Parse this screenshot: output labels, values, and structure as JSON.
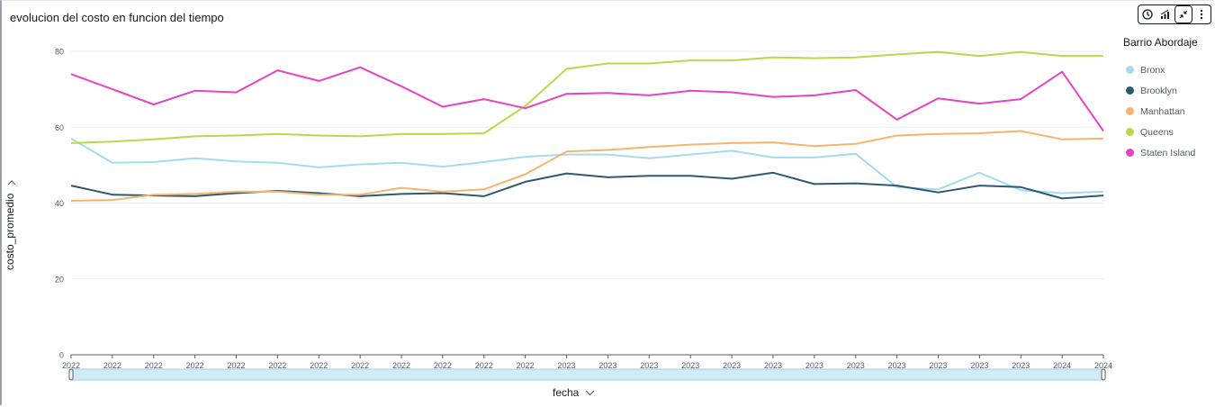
{
  "chart_data": {
    "type": "line",
    "title": "evolucion del costo en funcion del tiempo",
    "xlabel": "fecha",
    "ylabel": "costo_promedio",
    "ylim": [
      0,
      80
    ],
    "yticks": [
      0,
      20,
      40,
      60,
      80
    ],
    "grid": true,
    "legend_title": "Barrio Abordaje",
    "legend_position": "right",
    "categories": [
      "2022",
      "2022",
      "2022",
      "2022",
      "2022",
      "2022",
      "2022",
      "2022",
      "2022",
      "2022",
      "2022",
      "2022",
      "2023",
      "2023",
      "2023",
      "2023",
      "2023",
      "2023",
      "2023",
      "2023",
      "2023",
      "2023",
      "2023",
      "2023",
      "2024",
      "2024"
    ],
    "series": [
      {
        "name": "Bronx",
        "color": "#a4dcee",
        "values": [
          57.0,
          50.6,
          50.8,
          51.8,
          51.0,
          50.6,
          49.4,
          50.2,
          50.6,
          49.6,
          50.8,
          52.2,
          52.8,
          52.8,
          51.8,
          52.8,
          53.8,
          52.0,
          52.0,
          53.0,
          44.2,
          43.6,
          48.0,
          43.4,
          42.6,
          43.0
        ]
      },
      {
        "name": "Brooklyn",
        "color": "#2e5a70",
        "values": [
          44.6,
          42.2,
          42.0,
          41.8,
          42.6,
          43.2,
          42.6,
          41.8,
          42.4,
          42.6,
          41.8,
          45.6,
          47.8,
          46.8,
          47.2,
          47.2,
          46.4,
          48.0,
          45.0,
          45.2,
          44.6,
          42.8,
          44.6,
          44.2,
          41.2,
          42.0
        ]
      },
      {
        "name": "Manhattan",
        "color": "#f5b56e",
        "values": [
          40.6,
          40.8,
          42.2,
          42.4,
          43.0,
          43.0,
          42.2,
          42.2,
          44.0,
          43.0,
          43.6,
          47.6,
          53.6,
          54.0,
          54.8,
          55.4,
          55.8,
          56.0,
          55.0,
          55.6,
          57.8,
          58.2,
          58.4,
          59.0,
          56.8,
          57.0
        ]
      },
      {
        "name": "Queens",
        "color": "#b8d94a",
        "values": [
          55.8,
          56.2,
          56.8,
          57.6,
          57.8,
          58.2,
          57.8,
          57.6,
          58.2,
          58.2,
          58.4,
          65.6,
          75.4,
          76.8,
          76.8,
          77.6,
          77.6,
          78.4,
          78.2,
          78.4,
          79.2,
          79.8,
          78.8,
          79.8,
          78.8,
          78.8
        ]
      },
      {
        "name": "Staten Island",
        "color": "#e843c0",
        "values": [
          74.0,
          70.0,
          66.0,
          69.6,
          69.2,
          75.0,
          72.2,
          75.8,
          70.8,
          65.4,
          67.4,
          65.0,
          68.8,
          69.0,
          68.4,
          69.6,
          69.2,
          68.0,
          68.4,
          69.8,
          62.0,
          67.6,
          66.2,
          67.4,
          74.6,
          59.0
        ]
      }
    ]
  }
}
